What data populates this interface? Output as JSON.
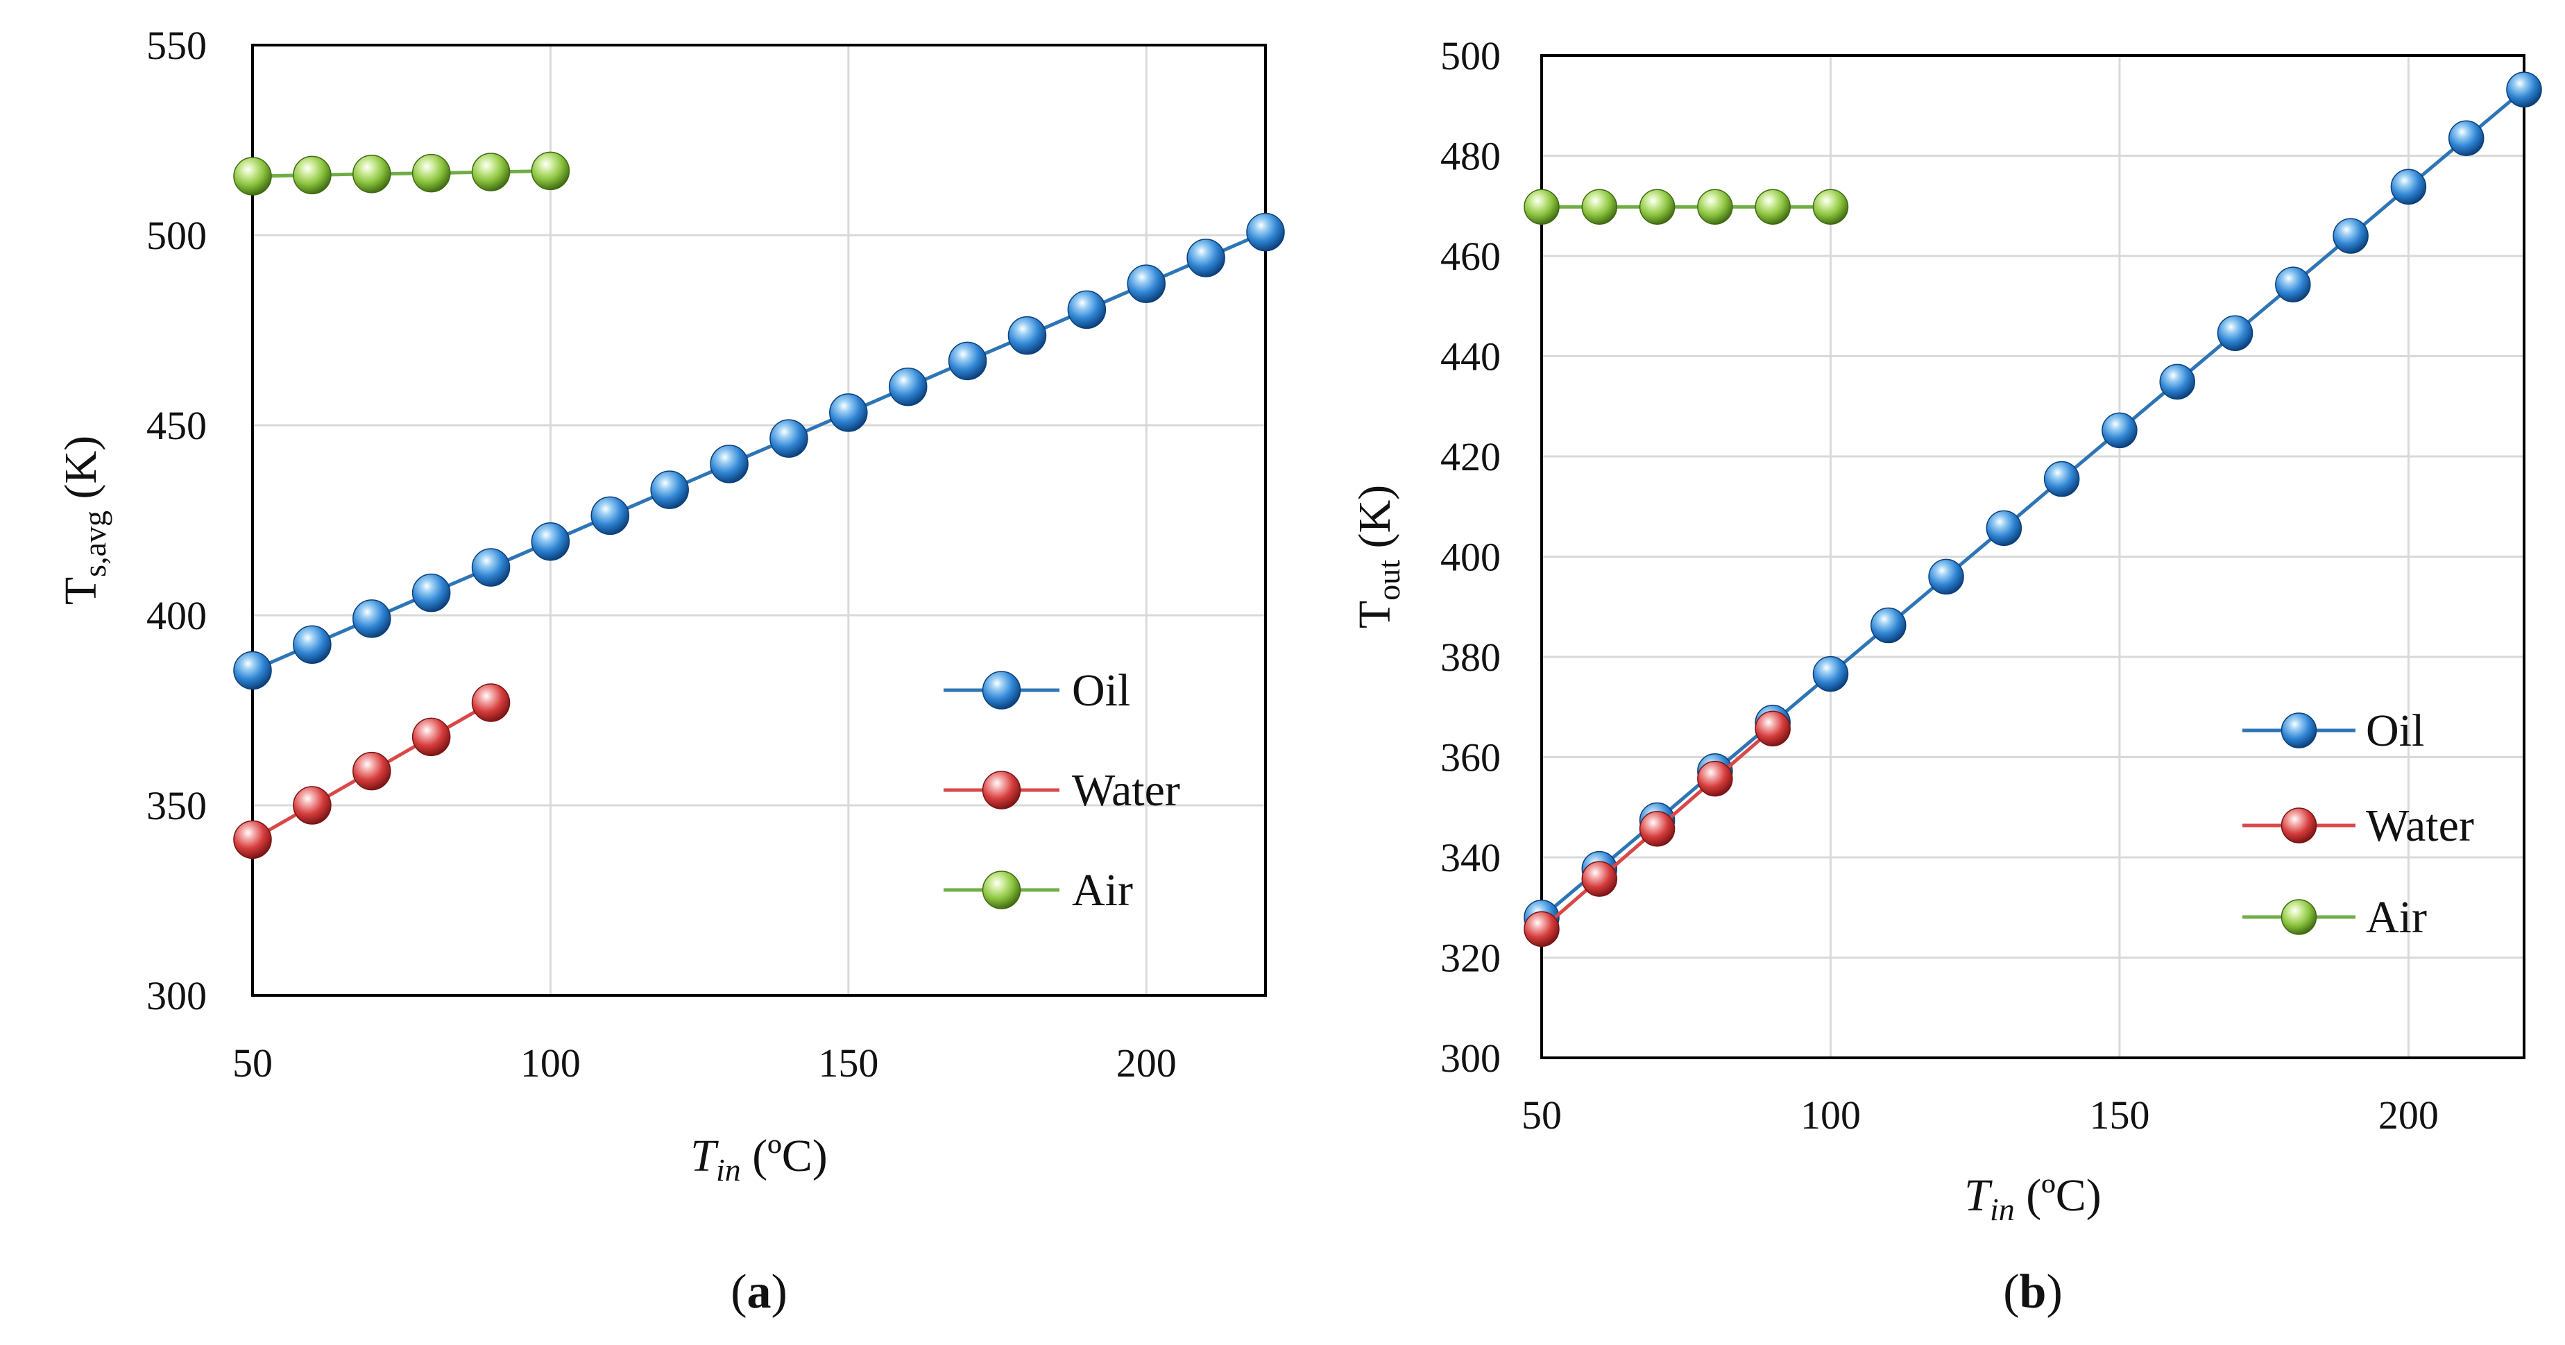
{
  "colors": {
    "Oil": {
      "line": "#2e75b6",
      "light": "#9dd0f5",
      "mid": "#2f84d4",
      "dark": "#0b3f7a"
    },
    "Water": {
      "line": "#d94848",
      "light": "#f6b0b0",
      "mid": "#d63c3c",
      "dark": "#7a1414"
    },
    "Air": {
      "line": "#70ad47",
      "light": "#d6f0a8",
      "mid": "#8cc43f",
      "dark": "#3f6b12"
    }
  },
  "chart_data": [
    {
      "type": "line",
      "panel_label": "(a)",
      "panel_letter": "a",
      "xlabel": {
        "main": "T",
        "sub": "in",
        "unit": " (ºC)"
      },
      "ylabel": {
        "main": "T",
        "sub": "s,avg",
        "unit": " (K)"
      },
      "xlim": [
        50,
        220
      ],
      "ylim": [
        300,
        550
      ],
      "xticks": [
        50,
        100,
        150,
        200
      ],
      "yticks": [
        300,
        350,
        400,
        450,
        500,
        550
      ],
      "grid": true,
      "legend_position": "bottom-right",
      "series": [
        {
          "name": "Oil",
          "x": [
            50,
            60,
            70,
            80,
            90,
            100,
            110,
            120,
            130,
            140,
            150,
            160,
            170,
            180,
            190,
            200,
            210,
            220
          ],
          "y": [
            385.5,
            392.3,
            399.1,
            405.9,
            412.6,
            419.4,
            426.2,
            433,
            439.8,
            446.5,
            453.3,
            460.1,
            466.9,
            473.6,
            480.4,
            487.2,
            494,
            500.8
          ]
        },
        {
          "name": "Water",
          "x": [
            50,
            60,
            70,
            80,
            90
          ],
          "y": [
            341,
            350,
            359,
            368,
            377
          ]
        },
        {
          "name": "Air",
          "x": [
            50,
            60,
            70,
            80,
            90,
            100
          ],
          "y": [
            515.5,
            515.8,
            516.1,
            516.3,
            516.6,
            516.9
          ]
        }
      ]
    },
    {
      "type": "line",
      "panel_label": "(b)",
      "panel_letter": "b",
      "xlabel": {
        "main": "T",
        "sub": "in",
        "unit": " (ºC)"
      },
      "ylabel": {
        "main": "T",
        "sub": "out",
        "unit": " (K)"
      },
      "xlim": [
        50,
        220
      ],
      "ylim": [
        300,
        500
      ],
      "xticks": [
        50,
        100,
        150,
        200
      ],
      "yticks": [
        300,
        320,
        340,
        360,
        380,
        400,
        420,
        440,
        460,
        480,
        500
      ],
      "grid": true,
      "legend_position": "bottom-right",
      "series": [
        {
          "name": "Oil",
          "x": [
            50,
            60,
            70,
            80,
            90,
            100,
            110,
            120,
            130,
            140,
            150,
            160,
            170,
            180,
            190,
            200,
            210,
            220
          ],
          "y": [
            328,
            337.7,
            347.4,
            357.2,
            366.9,
            376.6,
            386.3,
            396,
            405.7,
            415.5,
            425.2,
            434.9,
            444.6,
            454.3,
            464,
            473.8,
            483.5,
            493.2
          ]
        },
        {
          "name": "Water",
          "x": [
            50,
            60,
            70,
            80,
            90
          ],
          "y": [
            325.7,
            335.7,
            345.7,
            355.7,
            365.7
          ]
        },
        {
          "name": "Air",
          "x": [
            50,
            60,
            70,
            80,
            90,
            100
          ],
          "y": [
            469.8,
            469.8,
            469.8,
            469.8,
            469.8,
            469.8
          ]
        }
      ]
    }
  ]
}
